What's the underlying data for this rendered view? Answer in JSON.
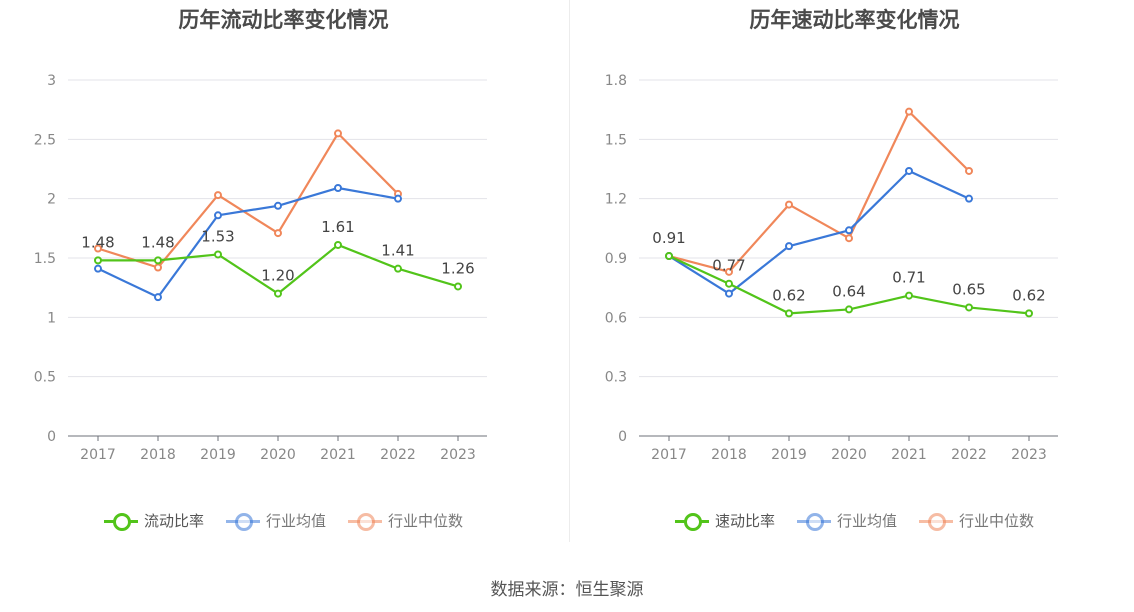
{
  "source": "数据来源：恒生聚源",
  "chart_data": [
    {
      "type": "line",
      "title": "历年流动比率变化情况",
      "categories": [
        "2017",
        "2018",
        "2019",
        "2020",
        "2021",
        "2022",
        "2023"
      ],
      "ylim": [
        0,
        3
      ],
      "yticks": [
        "0",
        "0.5",
        "1",
        "1.5",
        "2",
        "2.5",
        "3"
      ],
      "grid": true,
      "legend_position": "bottom",
      "series": [
        {
          "name": "流动比率",
          "color": "#52c41a",
          "values": [
            1.48,
            1.48,
            1.53,
            1.2,
            1.61,
            1.41,
            1.26
          ],
          "labels": [
            "1.48",
            "1.48",
            "1.53",
            "1.20",
            "1.61",
            "1.41",
            "1.26"
          ]
        },
        {
          "name": "行业均值",
          "color": "#3a78d8",
          "values": [
            1.41,
            1.17,
            1.86,
            1.94,
            2.09,
            2.0,
            null
          ]
        },
        {
          "name": "行业中位数",
          "color": "#f0875a",
          "values": [
            1.58,
            1.42,
            2.03,
            1.71,
            2.55,
            2.04,
            null
          ]
        }
      ]
    },
    {
      "type": "line",
      "title": "历年速动比率变化情况",
      "categories": [
        "2017",
        "2018",
        "2019",
        "2020",
        "2021",
        "2022",
        "2023"
      ],
      "ylim": [
        0,
        1.8
      ],
      "yticks": [
        "0",
        "0.3",
        "0.6",
        "0.9",
        "1.2",
        "1.5",
        "1.8"
      ],
      "grid": true,
      "legend_position": "bottom",
      "series": [
        {
          "name": "速动比率",
          "color": "#52c41a",
          "values": [
            0.91,
            0.77,
            0.62,
            0.64,
            0.71,
            0.65,
            0.62
          ],
          "labels": [
            "0.91",
            "0.77",
            "0.62",
            "0.64",
            "0.71",
            "0.65",
            "0.62"
          ]
        },
        {
          "name": "行业均值",
          "color": "#3a78d8",
          "values": [
            0.91,
            0.72,
            0.96,
            1.04,
            1.34,
            1.2,
            null
          ]
        },
        {
          "name": "行业中位数",
          "color": "#f0875a",
          "values": [
            0.91,
            0.83,
            1.17,
            1.0,
            1.64,
            1.34,
            null
          ]
        }
      ]
    }
  ]
}
